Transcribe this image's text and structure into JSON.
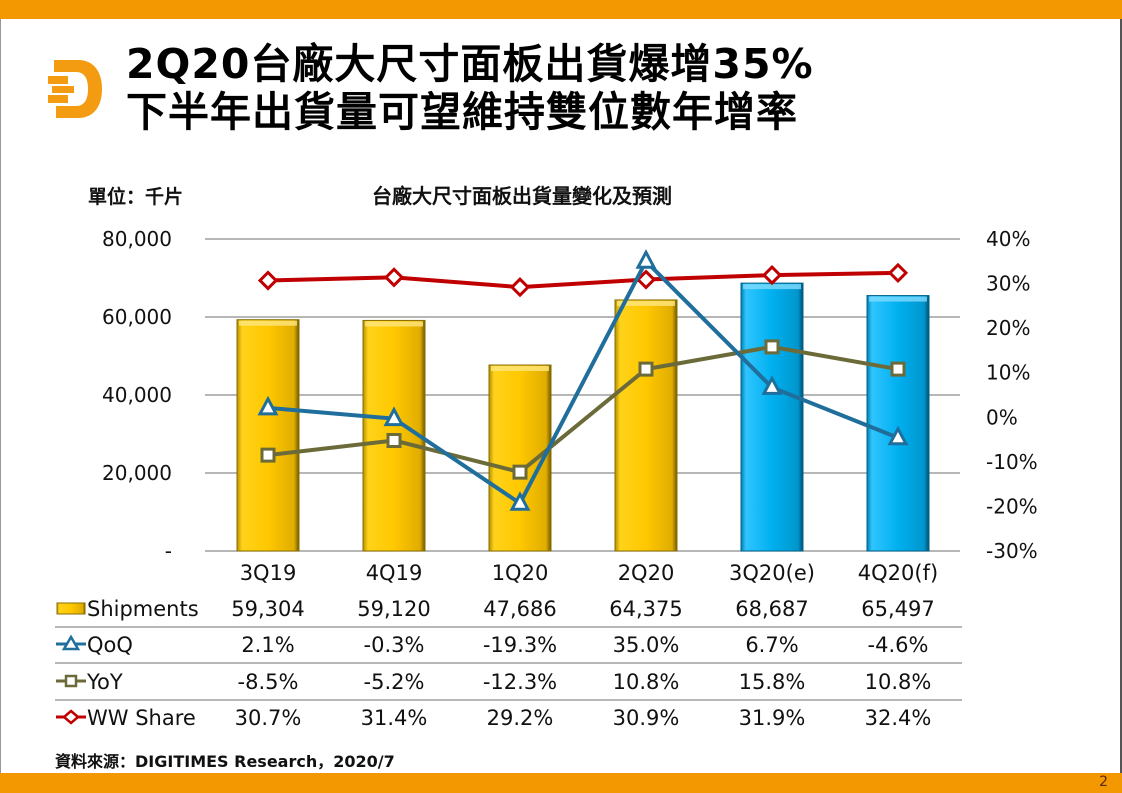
{
  "slide": {
    "title_line1": "2Q20台廠大尺寸面板出貨爆增35%",
    "title_line2": "下半年出貨量可望維持雙位數年增率",
    "logo_icon": "digitimes-d-logo-icon",
    "page_number": "2",
    "source": "資料來源：DIGITIMES Research，2020/7",
    "colors": {
      "accent_bar": "#f39800",
      "logo": "#f39c12"
    }
  },
  "chart_data": {
    "type": "bar",
    "title": "台廠大尺寸面板出貨量變化及預測",
    "unit_label": "單位：千片",
    "categories": [
      "3Q19",
      "4Q19",
      "1Q20",
      "2Q20",
      "3Q20(e)",
      "4Q20(f)"
    ],
    "y_left": {
      "range": [
        0,
        80000
      ],
      "ticks": [
        0,
        20000,
        40000,
        60000,
        80000
      ],
      "tick_labels": [
        "-",
        "20,000",
        "40,000",
        "60,000",
        "80,000"
      ]
    },
    "y_right": {
      "range": [
        -30,
        40
      ],
      "ticks": [
        -30,
        -20,
        -10,
        0,
        10,
        20,
        30,
        40
      ],
      "tick_labels": [
        "-30%",
        "-20%",
        "-10%",
        "0%",
        "10%",
        "20%",
        "30%",
        "40%"
      ]
    },
    "grid": true,
    "series": [
      {
        "name": "Shipments",
        "type": "bar",
        "axis": "left",
        "values": [
          59304,
          59120,
          47686,
          64375,
          68687,
          65497
        ],
        "labels": [
          "59,304",
          "59,120",
          "47,686",
          "64,375",
          "68,687",
          "65,497"
        ],
        "bar_kinds": [
          "actual",
          "actual",
          "actual",
          "actual",
          "forecast",
          "forecast"
        ],
        "colors": {
          "actual": "#ffc800",
          "actual_edge": "#7a6000",
          "forecast": "#00b0f0",
          "forecast_edge": "#005c80"
        }
      },
      {
        "name": "QoQ",
        "type": "line",
        "axis": "right",
        "marker": "triangle",
        "color": "#1f6e9c",
        "values": [
          2.1,
          -0.3,
          -19.3,
          35.0,
          6.7,
          -4.6
        ],
        "labels": [
          "2.1%",
          "-0.3%",
          "-19.3%",
          "35.0%",
          "6.7%",
          "-4.6%"
        ]
      },
      {
        "name": "YoY",
        "type": "line",
        "axis": "right",
        "marker": "square",
        "color": "#6b6b3a",
        "values": [
          -8.5,
          -5.2,
          -12.3,
          10.8,
          15.8,
          10.8
        ],
        "labels": [
          "-8.5%",
          "-5.2%",
          "-12.3%",
          "10.8%",
          "15.8%",
          "10.8%"
        ]
      },
      {
        "name": "WW Share",
        "type": "line",
        "axis": "right",
        "marker": "diamond",
        "color": "#c00000",
        "values": [
          30.7,
          31.4,
          29.2,
          30.9,
          31.9,
          32.4
        ],
        "labels": [
          "30.7%",
          "31.4%",
          "29.2%",
          "30.9%",
          "31.9%",
          "32.4%"
        ]
      }
    ],
    "legend": "data-table-below"
  }
}
